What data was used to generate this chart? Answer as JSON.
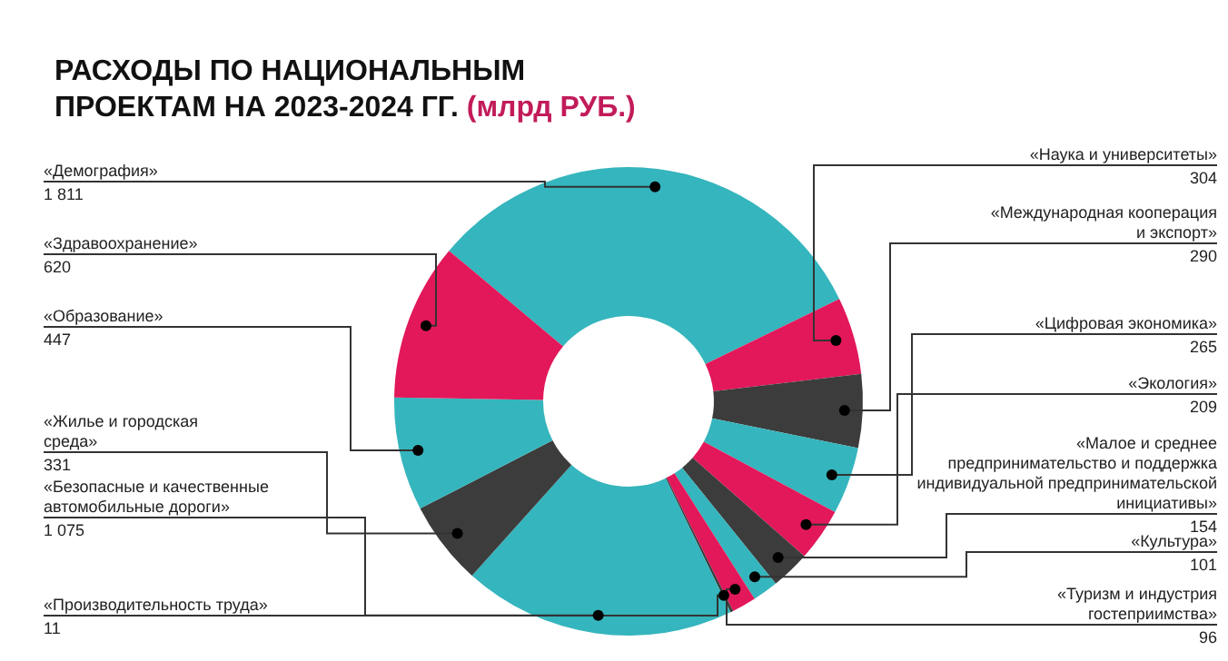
{
  "chart_data": {
    "type": "donut",
    "title": "РАСХОДЫ ПО НАЦИОНАЛЬНЫМ ПРОЕКТАМ НА 2023-2024 ГГ.",
    "subtitle": "(млрд РУБ.)",
    "categories": [
      "«Демография»",
      "«Наука и университеты»",
      "«Международная кооперация и экспорт»",
      "«Цифровая экономика»",
      "«Экология»",
      "«Малое и среднее предпринимательство и поддержка индивидуальной предпринимательской инициативы»",
      "«Культура»",
      "«Туризм и индустрия гостеприимства»",
      "«Производительность труда»",
      "«Безопасные и качественные автомобильные дороги»",
      "«Жилье и городская среда»",
      "«Образование»",
      "«Здравоохранение»"
    ],
    "values": [
      1811,
      304,
      290,
      265,
      209,
      154,
      101,
      96,
      11,
      1075,
      331,
      447,
      620
    ],
    "value_labels": [
      "1 811",
      "304",
      "290",
      "265",
      "209",
      "154",
      "101",
      "96",
      "11",
      "1 075",
      "331",
      "447",
      "620"
    ],
    "colors": [
      "#35b5bd",
      "#e2185a",
      "#3c3c3c",
      "#35b5bd",
      "#e2185a",
      "#3c3c3c",
      "#35b5bd",
      "#e2185a",
      "#3c3c3c",
      "#35b5bd",
      "#3c3c3c",
      "#35b5bd",
      "#e2185a"
    ],
    "legend": false
  }
}
